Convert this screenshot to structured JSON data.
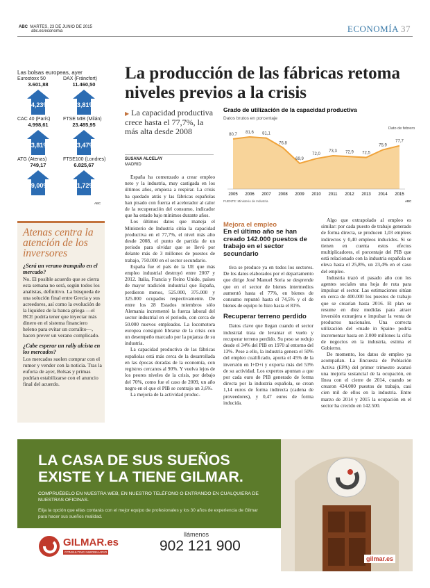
{
  "header": {
    "brand": "ABC",
    "date": "MARTES, 23 DE JUNIO DE 2015",
    "url": "abc.es/economia",
    "section": "ECONOMÍA",
    "page": "37"
  },
  "markets": {
    "title": "Las bolsas europeas, ayer",
    "credit": "ABC",
    "items": [
      {
        "name": "Eurostoxx 50",
        "value": "3.601,88",
        "change": "+4,23%"
      },
      {
        "name": "DAX (Fráncfort)",
        "value": "11.460,50",
        "change": "+3,81%"
      },
      {
        "name": "CAC 40 (París)",
        "value": "4.998,61",
        "change": "+3,81%"
      },
      {
        "name": "FTSE MIB (Milán)",
        "value": "23.485,95",
        "change": "+3,47%"
      },
      {
        "name": "ATG (Atenas)",
        "value": "749,17",
        "change": "+9,00%"
      },
      {
        "name": "FTSE100 (Londres)",
        "value": "6.825,67",
        "change": "+1,72%"
      }
    ]
  },
  "sidebar": {
    "title": "Atenas centra la atención de los inversores",
    "qa": [
      {
        "q": "¿Será un verano tranquilo en el mercado?",
        "a": "No. El posible acuerdo que se cierra esta semana no será, según todos los analistas, definitivo. La búsqueda de una solución final entre Grecia y sus acreedores, así como la evolución de la liquidez de la banca griega —el BCE podría tener que inyectar más dinero en el sistema financiero heleno para evitar un corralito—, hacen prever un verano complicado."
      },
      {
        "q": "¿Cabe esperar un rally alcista en los mercados?",
        "a": "Los mercados suelen comprar con el rumor y vender con la noticia. Tras la euforia de ayer, Bolsas y primas podrían estabilizarse con el anuncio final del acuerdo."
      }
    ]
  },
  "article": {
    "headline": "La producción de las fábricas retoma niveles previos a la crisis",
    "subhead": "La capacidad productiva crece hasta el 77,7%, la más alta desde 2008",
    "author": "SUSANA ALCELAY",
    "place": "MADRID",
    "col1": [
      "España ha comenzado a crear empleo neto y la industria, muy castigada en los últimos años, empieza a respirar. La crisis ha quedado atrás y las fábricas españolas han pisado con fuerza el acelerador al calor de la recuperación del consumo, indicador que ha estado bajo mínimos durante años.",
      "Los últimos datos que maneja el Ministerio de Industria sitúa la capacidad productiva en el 77,7%, el nivel más alto desde 2008, el punto de partida de un periodo para olvidar que se llevó por delante más de 3 millones de puestos de trabajo, 750.000 en el sector secundario.",
      "España fue el país de la UE que más empleo industrial destruyó entre 2007 y 2012. Italia, Francia y Reino Unido, países de mayor tradición industrial que España, perdieron menos, 525.000, 375.000 y 325.000 ocupados respectivamente. De entre los 28 Estados miembros sólo Alemania incrementó la fuerza laboral del sector industrial en el periodo, con cerca de 50.000 nuevos empleados. La locomotora europea consiguió librarse de la crisis con un desempeño marcado por la pujanza de su industria.",
      "La capacidad productiva de las fábricas españolas está más cerca de la desarrollada en las épocas doradas de la economía, con registros cercanos al 90%. Y vuelva lejos de los peores niveles de la crisis, por debajo del 70%, como fue el caso de 2009, un año negro en el que el PIB se contrajo un 3,6%.",
      "La mejoría de la actividad produc-"
    ],
    "callout_kicker": "Mejora el empleo",
    "callout": "En el último año se han creado 142.000 puestos de trabajo en el sector secundario",
    "col2a": [
      "tiva se produce ya en todos los sectores. De los datos elaborados por el departamento que dirige José Manuel Soria se desprende que en el sector de bienes intermedios aumentó hasta el 77%, en bienes de consumo repuntó hasta el 74,5% y el de bienes de equipo lo hizo hasta el 81%."
    ],
    "subheading": "Recuperar terreno perdido",
    "col2b": [
      "Datos clave que llegan cuando el sector industrial trata de levantar el vuelo y recuperar terreno perdido. Su peso se redujo desde el 34% del PIB en 1970 al entorno del 13%. Pese a ello, la industria genera el 50% del empleo cualificado, aporta el 45% de la inversión en I+D+i y exporta más del 53% de su actividad. Los expertos apuntan a que por cada euro de PIB generado de forma directa por la industria española, se crean 1,14 euros de forma indirecta (cadena de proveedores), y 0,47 euros de forma inducida."
    ],
    "col3": [
      "Algo que extrapolado al empleo es similar: por cada puesto de trabajo generado de forma directa, se producen 1,03 empleos indirectos y 0,40 empleos inducidos. Si se tienen en cuenta estos efectos multiplicadores, el porcentaje del PIB que está relacionado con la industria española se eleva hasta el 25,8%, un 23,4% en el caso del empleo.",
      "Industria trazó el pasado año con los agentes sociales una hoja de ruta para impulsar el sector. Las estimaciones sitúan en cerca de 400.000 los puestos de trabajo que se crearían hasta 2016. El plan se resume en diez medidas para atraer inversión extranjera e impulsar la venta de productos nacionales. Una correcta utilización del «made in Spain» podría incrementar hasta en 2.000 millones la cifra de negocios en la industria, estima el Gobierno.",
      "De momento, los datos de empleo ya acompañan. La Encuesta de Población Activa (EPA) del primer trimestre avanzó una mejoría sustancial de la ocupación, en línea con el cierre de 2014, cuando se crearon 434.000 puestos de trabajo, casi cien mil de ellos en la industria. Entre marzo de 2014 y 2015 la ocupación en el sector ha crecido en 142.500."
    ]
  },
  "chart_data": {
    "type": "area",
    "title": "Grado de utilización de la capacidad productiva",
    "subtitle": "Datos brutos en porcentaje",
    "categories": [
      "2005",
      "2006",
      "2007",
      "2008",
      "2009",
      "2010",
      "2011",
      "2012",
      "2013",
      "2014",
      "2015"
    ],
    "values": [
      80.7,
      81.6,
      81.1,
      76.8,
      69.9,
      72.0,
      73.3,
      72.9,
      72.5,
      75.9,
      77.7
    ],
    "value_labels": [
      "80,7",
      "81,6",
      "81,1",
      "76,8",
      "69,9",
      "72,0",
      "73,3",
      "72,9",
      "72,5",
      "75,9",
      "77,7"
    ],
    "color": "#f0a33a",
    "annotation": "Dato de febrero",
    "source": "FUENTE: Ministerio de Industria",
    "credit": "ABC"
  },
  "ad": {
    "headline1": "LA CASA DE SUS SUEÑOS",
    "headline2": "EXISTE Y LA TIENE GILMAR.",
    "line1": "COMPRUÉBELO EN NUESTRA WEB, EN NUESTRO TELÉFONO O ENTRANDO EN CUALQUIERA DE NUESTRAS OFICINAS.",
    "line2": "Elija la opción que ellas contarás con el mejor equipo de profesionales y los 30 años de experiencia de Gilmar para hacer sus sueños realidad.",
    "logo": "GILMAR.es",
    "logo_sub": "CONSULTING INMOBILIARIO",
    "call": "llámenos",
    "phone": "902 121 900",
    "web": "gilmar.es"
  }
}
